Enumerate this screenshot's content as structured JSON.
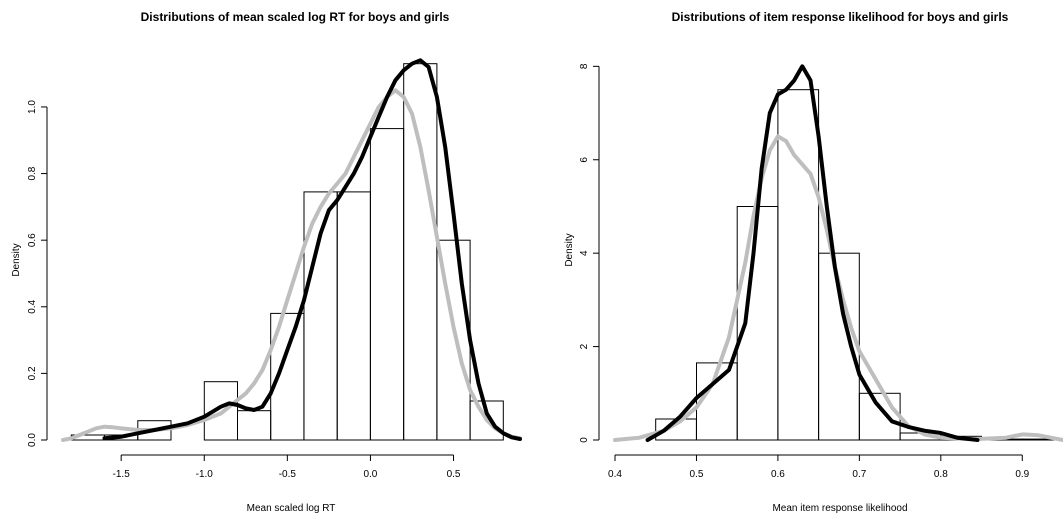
{
  "chart_data": [
    {
      "type": "histogram",
      "title": "Distributions of mean scaled log RT for boys and girls",
      "xlabel": "Mean scaled log RT",
      "ylabel": "Density",
      "xlim": [
        -1.85,
        0.9
      ],
      "ylim": [
        0,
        1.15
      ],
      "x_ticks": [
        -1.5,
        -1.0,
        -0.5,
        0.0,
        0.5
      ],
      "x_tick_labels": [
        "-1.5",
        "-1.0",
        "-0.5",
        "0.0",
        "0.5"
      ],
      "y_ticks": [
        0.0,
        0.2,
        0.4,
        0.6,
        0.8,
        1.0
      ],
      "y_tick_labels": [
        "0.0",
        "0.2",
        "0.4",
        "0.6",
        "0.8",
        "1.0"
      ],
      "bins": [
        {
          "from": -1.8,
          "to": -1.6,
          "density": 0.015
        },
        {
          "from": -1.6,
          "to": -1.4,
          "density": 0.015
        },
        {
          "from": -1.4,
          "to": -1.2,
          "density": 0.058
        },
        {
          "from": -1.2,
          "to": -1.0,
          "density": 0.0
        },
        {
          "from": -1.0,
          "to": -0.8,
          "density": 0.175
        },
        {
          "from": -0.8,
          "to": -0.6,
          "density": 0.088
        },
        {
          "from": -0.6,
          "to": -0.4,
          "density": 0.38
        },
        {
          "from": -0.4,
          "to": -0.2,
          "density": 0.745
        },
        {
          "from": -0.2,
          "to": 0.0,
          "density": 0.745
        },
        {
          "from": 0.0,
          "to": 0.2,
          "density": 0.935
        },
        {
          "from": 0.2,
          "to": 0.4,
          "density": 1.13
        },
        {
          "from": 0.4,
          "to": 0.6,
          "density": 0.6
        },
        {
          "from": 0.6,
          "to": 0.8,
          "density": 0.117
        }
      ],
      "series": [
        {
          "color": "#000000",
          "x": [
            -1.6,
            -1.5,
            -1.4,
            -1.3,
            -1.2,
            -1.1,
            -1.0,
            -0.9,
            -0.85,
            -0.8,
            -0.75,
            -0.7,
            -0.65,
            -0.6,
            -0.55,
            -0.5,
            -0.45,
            -0.4,
            -0.35,
            -0.3,
            -0.25,
            -0.2,
            -0.15,
            -0.1,
            -0.05,
            0.0,
            0.05,
            0.1,
            0.15,
            0.2,
            0.25,
            0.3,
            0.35,
            0.4,
            0.45,
            0.5,
            0.55,
            0.6,
            0.65,
            0.7,
            0.75,
            0.8,
            0.85,
            0.9
          ],
          "y": [
            0.005,
            0.01,
            0.02,
            0.03,
            0.04,
            0.05,
            0.07,
            0.1,
            0.11,
            0.105,
            0.095,
            0.09,
            0.1,
            0.14,
            0.2,
            0.27,
            0.34,
            0.42,
            0.52,
            0.62,
            0.69,
            0.72,
            0.76,
            0.8,
            0.85,
            0.91,
            0.97,
            1.03,
            1.08,
            1.11,
            1.13,
            1.14,
            1.12,
            1.03,
            0.88,
            0.68,
            0.47,
            0.3,
            0.17,
            0.08,
            0.04,
            0.02,
            0.008,
            0.003
          ]
        },
        {
          "color": "#bebebe",
          "x": [
            -1.85,
            -1.8,
            -1.75,
            -1.7,
            -1.65,
            -1.6,
            -1.55,
            -1.5,
            -1.4,
            -1.3,
            -1.2,
            -1.1,
            -1.0,
            -0.9,
            -0.8,
            -0.75,
            -0.7,
            -0.65,
            -0.6,
            -0.55,
            -0.5,
            -0.45,
            -0.4,
            -0.35,
            -0.3,
            -0.25,
            -0.2,
            -0.15,
            -0.1,
            -0.05,
            0.0,
            0.05,
            0.1,
            0.15,
            0.2,
            0.25,
            0.3,
            0.35,
            0.4,
            0.45,
            0.5,
            0.55,
            0.6,
            0.65,
            0.7,
            0.75,
            0.8,
            0.85,
            0.9
          ],
          "y": [
            0.0,
            0.005,
            0.015,
            0.025,
            0.035,
            0.04,
            0.038,
            0.035,
            0.03,
            0.03,
            0.035,
            0.045,
            0.06,
            0.08,
            0.12,
            0.14,
            0.17,
            0.21,
            0.27,
            0.34,
            0.42,
            0.5,
            0.58,
            0.65,
            0.7,
            0.74,
            0.77,
            0.8,
            0.85,
            0.9,
            0.95,
            1.0,
            1.03,
            1.05,
            1.03,
            0.98,
            0.88,
            0.75,
            0.61,
            0.47,
            0.34,
            0.23,
            0.15,
            0.1,
            0.06,
            0.035,
            0.02,
            0.01,
            0.005
          ]
        }
      ]
    },
    {
      "type": "histogram",
      "title": "Distributions of item response likelihood for boys and girls",
      "xlabel": "Mean item response likelihood",
      "ylabel": "Density",
      "xlim": [
        0.4,
        0.95
      ],
      "ylim": [
        0,
        8.2
      ],
      "x_ticks": [
        0.4,
        0.5,
        0.6,
        0.7,
        0.8,
        0.9
      ],
      "x_tick_labels": [
        "0.4",
        "0.5",
        "0.6",
        "0.7",
        "0.8",
        "0.9"
      ],
      "y_ticks": [
        0,
        2,
        4,
        6,
        8
      ],
      "y_tick_labels": [
        "0",
        "2",
        "4",
        "6",
        "8"
      ],
      "bins": [
        {
          "from": 0.45,
          "to": 0.5,
          "density": 0.45
        },
        {
          "from": 0.5,
          "to": 0.55,
          "density": 1.65
        },
        {
          "from": 0.55,
          "to": 0.6,
          "density": 5.0
        },
        {
          "from": 0.6,
          "to": 0.65,
          "density": 7.5
        },
        {
          "from": 0.65,
          "to": 0.7,
          "density": 4.0
        },
        {
          "from": 0.7,
          "to": 0.75,
          "density": 1.0
        },
        {
          "from": 0.75,
          "to": 0.8,
          "density": 0.15
        },
        {
          "from": 0.8,
          "to": 0.85,
          "density": 0.08
        },
        {
          "from": 0.85,
          "to": 0.9,
          "density": 0.02
        },
        {
          "from": 0.9,
          "to": 0.95,
          "density": 0.02
        }
      ],
      "series": [
        {
          "color": "#000000",
          "x": [
            0.44,
            0.46,
            0.48,
            0.5,
            0.52,
            0.54,
            0.56,
            0.57,
            0.58,
            0.59,
            0.6,
            0.61,
            0.62,
            0.63,
            0.64,
            0.65,
            0.66,
            0.67,
            0.68,
            0.69,
            0.7,
            0.72,
            0.74,
            0.76,
            0.78,
            0.8,
            0.82,
            0.84,
            0.845
          ],
          "y": [
            0.0,
            0.2,
            0.5,
            0.9,
            1.2,
            1.5,
            2.5,
            4.0,
            5.8,
            7.0,
            7.4,
            7.5,
            7.7,
            8.0,
            7.7,
            6.5,
            5.0,
            3.7,
            2.7,
            2.0,
            1.4,
            0.8,
            0.4,
            0.28,
            0.2,
            0.15,
            0.05,
            0.01,
            0.0
          ]
        },
        {
          "color": "#bebebe",
          "x": [
            0.4,
            0.43,
            0.46,
            0.48,
            0.5,
            0.52,
            0.54,
            0.56,
            0.57,
            0.58,
            0.59,
            0.6,
            0.61,
            0.62,
            0.63,
            0.64,
            0.65,
            0.66,
            0.67,
            0.68,
            0.69,
            0.7,
            0.72,
            0.74,
            0.76,
            0.78,
            0.8,
            0.84,
            0.88,
            0.9,
            0.92,
            0.95
          ],
          "y": [
            0.0,
            0.05,
            0.2,
            0.4,
            0.7,
            1.2,
            2.2,
            3.8,
            4.8,
            5.6,
            6.2,
            6.5,
            6.4,
            6.1,
            5.9,
            5.7,
            5.2,
            4.5,
            3.7,
            3.0,
            2.4,
            1.9,
            1.3,
            0.7,
            0.3,
            0.12,
            0.05,
            0.02,
            0.05,
            0.12,
            0.1,
            0.0
          ]
        }
      ]
    }
  ]
}
